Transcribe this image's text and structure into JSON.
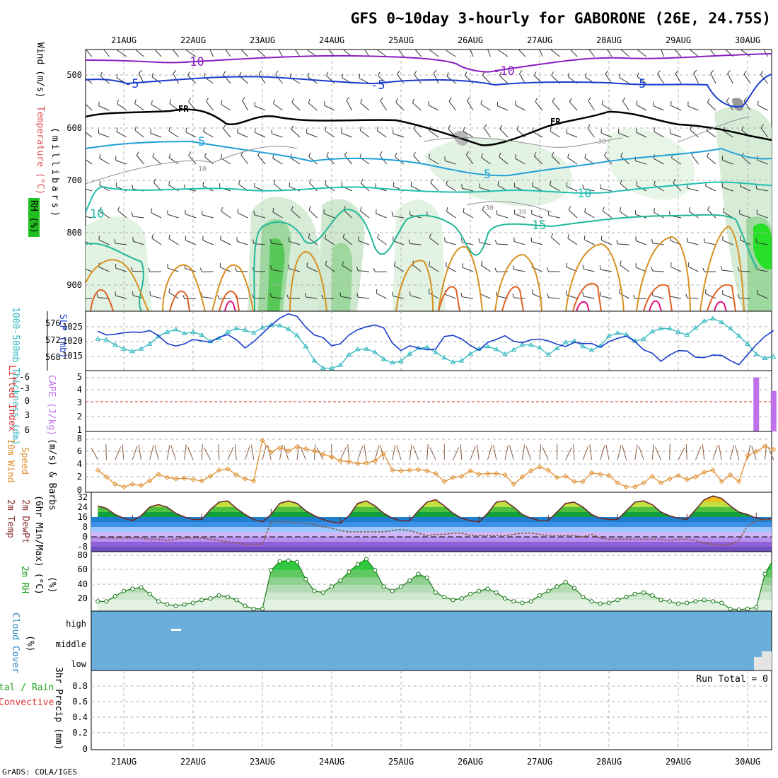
{
  "title": "GFS 0~10day 3-hourly for GABORONE (26E, 24.75S)",
  "credit": "GrADS: COLA/IGES",
  "dates": [
    "21AUG",
    "22AUG",
    "23AUG",
    "24AUG",
    "25AUG",
    "26AUG",
    "27AUG",
    "28AUG",
    "29AUG",
    "30AUG"
  ],
  "colors": {
    "temperature": "#e05050",
    "wind": "#000000",
    "rh": "#20c020",
    "thickness": "#30b8c0",
    "slp": "#1a3ccc",
    "lifted_index": "#e03030",
    "cape": "#c070e8",
    "wind10": "#e09030",
    "barbs": "#8a5a3a",
    "dewpt": "#8a5a3a",
    "rh2m": "#20a020",
    "cloud": "#6aaedc",
    "precip_label": "#20a020"
  },
  "panels": {
    "upper": {
      "ylabel_wind": "Wind (m/s)",
      "ylabel_temp": "Temperature (°C)",
      "ylabel_rh": "RH (%)",
      "ylabel_axis": "(millibars)",
      "yticks": [
        "500",
        "600",
        "700",
        "800",
        "900"
      ],
      "labels": {
        "m10a": "-10",
        "m10b": "-10",
        "m5a": "-5",
        "m5b": "-5",
        "m5c": "-5",
        "fr1": "FR",
        "fr2": "FR",
        "p5a": "5",
        "p5b": "5",
        "p10a": "10",
        "p10b": "10",
        "p15": "15",
        "rh10": "10",
        "rh30a": "30",
        "rh30b": "30",
        "rh30c": "30"
      }
    },
    "thick": {
      "ylabel_left": "1000-500mb Thickness (dm)",
      "ylabel_right": "SLP (mb)",
      "yticks_left": [
        "576",
        "572",
        "568"
      ],
      "yticks_right": [
        "1025",
        "1020",
        "1015"
      ]
    },
    "li": {
      "ylabel_left": "Lifted Index",
      "ylabel_right": "CAPE (J/kg)",
      "yticks_left": [
        "-6",
        "-3",
        "0",
        "3",
        "6"
      ],
      "yticks_right": [
        "5",
        "4",
        "3",
        "2",
        "1"
      ]
    },
    "wind10": {
      "ylabel1": "10m Wind",
      "ylabel2": "Speed",
      "ylabel3": "(m/s) & Barbs",
      "yticks": [
        "8",
        "6",
        "4",
        "2",
        "0"
      ]
    },
    "temp2m": {
      "ylabel1": "2m Temp",
      "ylabel2": "2m DewPt",
      "ylabel3": "(6hr Min/Max) (°C)",
      "yticks": [
        "32",
        "24",
        "16",
        "8",
        "0",
        "-8"
      ]
    },
    "rh2m": {
      "ylabel1": "2m RH",
      "ylabel2": "(%)",
      "yticks": [
        "80",
        "60",
        "40",
        "20"
      ]
    },
    "cloud": {
      "ylabel1": "Cloud Cover",
      "ylabel2": "(%)",
      "levels": [
        "high",
        "middle",
        "low"
      ]
    },
    "precip": {
      "ylabel1": "3hr Precip (mm)",
      "ylabel_total": "tal / Rain",
      "ylabel_conv": "Convective",
      "run_total": "Run Total = 0",
      "yticks": [
        "0.8",
        "0.6",
        "0.4",
        "0.2",
        "0"
      ]
    }
  },
  "chart_data": [
    {
      "type": "line",
      "title": "1000-500mb Thickness (dm) / SLP (mb)",
      "x": [
        0,
        1,
        2,
        3,
        4,
        5,
        6,
        7,
        8,
        9,
        10,
        11,
        12,
        13,
        14,
        15,
        16,
        17,
        18,
        19,
        20,
        21,
        22,
        23,
        24,
        25,
        26,
        27,
        28,
        29,
        30,
        31,
        32,
        33,
        34,
        35,
        36,
        37,
        38,
        39,
        40,
        41,
        42,
        43,
        44,
        45,
        46,
        47,
        48,
        49,
        50,
        51,
        52,
        53,
        54,
        55,
        56,
        57,
        58,
        59,
        60,
        61,
        62,
        63,
        64,
        65,
        66,
        67,
        68,
        69,
        70,
        71,
        72,
        73,
        74,
        75,
        76,
        77,
        78
      ],
      "series": [
        {
          "name": "Thickness (dm)",
          "axis": "left",
          "values": [
            572.4,
            572.2,
            571.2,
            570.4,
            569.9,
            570.4,
            571.4,
            572.9,
            573.8,
            574.3,
            573.5,
            573.8,
            573.2,
            571.9,
            572.5,
            573.8,
            574.5,
            574.2,
            573.6,
            574.7,
            575.2,
            575.1,
            574.4,
            573.1,
            570.9,
            568.0,
            566.5,
            566.5,
            567.1,
            569.2,
            570.3,
            570.4,
            569.7,
            568.3,
            567.6,
            567.9,
            569.4,
            570.5,
            570.7,
            569.7,
            568.6,
            567.7,
            568.0,
            569.4,
            570.4,
            570.9,
            570.3,
            569.3,
            570.2,
            571.2,
            571.2,
            570.6,
            569.2,
            570.5,
            571.7,
            572.0,
            570.9,
            570.1,
            571.0,
            573.0,
            573.6,
            573.3,
            572.0,
            572.4,
            573.9,
            574.5,
            574.5,
            573.8,
            573.2,
            574.6,
            576.0,
            576.5,
            575.8,
            574.5,
            573.0,
            571.4,
            569.3,
            568.5,
            568.8
          ]
        },
        {
          "name": "SLP (mb)",
          "axis": "right",
          "values": [
            1022.6,
            1021.6,
            1021.8,
            1022.2,
            1022.4,
            1022.3,
            1022.8,
            1021.4,
            1019.3,
            1018.6,
            1019.2,
            1020.4,
            1020.0,
            1019.7,
            1021.0,
            1021.7,
            1020.3,
            1018.1,
            1019.8,
            1022.0,
            1024.2,
            1026.1,
            1027.3,
            1026.6,
            1023.7,
            1021.6,
            1020.9,
            1018.7,
            1019.2,
            1021.6,
            1023.0,
            1023.8,
            1024.3,
            1023.5,
            1019.4,
            1017.4,
            1018.7,
            1018.1,
            1017.6,
            1017.8,
            1021.2,
            1021.5,
            1020.5,
            1018.8,
            1017.5,
            1019.6,
            1020.4,
            1021.4,
            1019.9,
            1019.5,
            1020.3,
            1020.5,
            1020.0,
            1019.1,
            1018.5,
            1019.6,
            1019.3,
            1019.3,
            1018.3,
            1019.8,
            1020.7,
            1021.3,
            1019.8,
            1017.6,
            1016.7,
            1014.5,
            1016.2,
            1017.4,
            1017.3,
            1015.6,
            1015.5,
            1016.2,
            1016.1,
            1014.7,
            1013.6,
            1016.3,
            1019.0,
            1021.2,
            1022.8
          ]
        }
      ],
      "xlabel": "",
      "ylabel": "1000-500mb Thickness (dm)",
      "ylim_left": [
        566,
        578
      ],
      "ylim_right": [
        1012,
        1028
      ]
    },
    {
      "type": "bar",
      "title": "Lifted Index / CAPE (J/kg)",
      "x": [
        76,
        78
      ],
      "series": [
        {
          "name": "CAPE (J/kg)",
          "values": [
            5.0,
            4.0
          ]
        }
      ],
      "lifted_index_line": 0,
      "ylim_cape": [
        1,
        5.5
      ],
      "ylim_li": [
        6,
        -6
      ]
    },
    {
      "type": "line",
      "title": "10m Wind Speed (m/s) & Barbs",
      "x": [
        0,
        1,
        2,
        3,
        4,
        5,
        6,
        7,
        8,
        9,
        10,
        11,
        12,
        13,
        14,
        15,
        16,
        17,
        18,
        19,
        20,
        21,
        22,
        23,
        24,
        25,
        26,
        27,
        28,
        29,
        30,
        31,
        32,
        33,
        34,
        35,
        36,
        37,
        38,
        39,
        40,
        41,
        42,
        43,
        44,
        45,
        46,
        47,
        48,
        49,
        50,
        51,
        52,
        53,
        54,
        55,
        56,
        57,
        58,
        59,
        60,
        61,
        62,
        63,
        64,
        65,
        66,
        67,
        68,
        69,
        70,
        71,
        72,
        73,
        74,
        75,
        76,
        77,
        78
      ],
      "series": [
        {
          "name": "10m Wind Speed (m/s)",
          "values": [
            3.1,
            2.1,
            1.0,
            0.6,
            1.0,
            0.8,
            1.5,
            2.5,
            2.0,
            1.8,
            1.9,
            1.7,
            1.5,
            2.2,
            3.1,
            3.3,
            2.4,
            1.8,
            1.5,
            7.6,
            5.8,
            6.5,
            6.0,
            6.6,
            6.3,
            6.0,
            5.5,
            5.1,
            4.5,
            4.4,
            4.1,
            4.2,
            4.5,
            5.6,
            3.1,
            3.0,
            3.1,
            3.2,
            3.0,
            2.6,
            1.4,
            2.0,
            2.2,
            3.0,
            2.5,
            2.6,
            2.6,
            2.4,
            1.0,
            2.1,
            3.0,
            3.6,
            3.1,
            2.0,
            2.2,
            1.4,
            1.4,
            2.7,
            2.5,
            2.3,
            1.2,
            0.6,
            0.6,
            1.2,
            2.2,
            1.2,
            1.8,
            2.3,
            1.7,
            2.1,
            2.8,
            3.1,
            1.4,
            2.4,
            1.4,
            5.3,
            5.9,
            6.7,
            6.2
          ]
        }
      ],
      "ylim": [
        0,
        8.5
      ]
    },
    {
      "type": "line",
      "title": "2m Temp / 2m DewPt (6hr Min/Max) (°C)",
      "x": [
        0,
        1,
        2,
        3,
        4,
        5,
        6,
        7,
        8,
        9,
        10,
        11,
        12,
        13,
        14,
        15,
        16,
        17,
        18,
        19,
        20,
        21,
        22,
        23,
        24,
        25,
        26,
        27,
        28,
        29,
        30,
        31,
        32,
        33,
        34,
        35,
        36,
        37,
        38,
        39,
        40,
        41,
        42,
        43,
        44,
        45,
        46,
        47,
        48,
        49,
        50,
        51,
        52,
        53,
        54,
        55,
        56,
        57,
        58,
        59,
        60,
        61,
        62,
        63,
        64,
        65,
        66,
        67,
        68,
        69,
        70,
        71,
        72,
        73,
        74,
        75,
        76,
        77,
        78
      ],
      "series": [
        {
          "name": "2m Temp",
          "values": [
            25,
            23,
            18,
            15,
            13,
            17,
            24,
            26,
            24,
            19,
            16,
            14,
            14,
            22,
            28,
            29,
            23,
            18,
            14,
            12,
            18,
            27,
            29,
            27,
            21,
            17,
            14,
            12,
            11,
            17,
            27,
            29,
            25,
            19,
            15,
            13,
            13,
            21,
            28,
            30,
            25,
            19,
            15,
            13,
            12,
            19,
            28,
            29,
            24,
            18,
            15,
            13,
            13,
            20,
            27,
            28,
            24,
            18,
            15,
            14,
            14,
            21,
            28,
            29,
            26,
            20,
            17,
            15,
            14,
            22,
            30,
            33,
            31,
            25,
            20,
            18,
            15,
            14,
            15
          ]
        },
        {
          "name": "2m DewPt",
          "values": [
            -1,
            -1,
            -1,
            -1,
            -1,
            -1,
            -2,
            -2,
            -3,
            -2,
            -1,
            -1,
            -1,
            -2,
            -3,
            -4,
            -5,
            -6,
            -6,
            -6,
            12,
            12,
            12,
            11,
            11,
            10,
            8,
            7,
            5,
            4,
            4,
            4,
            4,
            4,
            5,
            6,
            5,
            3,
            1,
            2,
            2,
            3,
            3,
            1,
            1,
            1,
            1,
            1,
            2,
            3,
            3,
            2,
            1,
            1,
            1,
            1,
            0,
            2,
            -1,
            -2,
            -2,
            -2,
            -2,
            -2,
            -2,
            -2,
            -3,
            -2,
            -2,
            -3,
            -5,
            -6,
            -7,
            -6,
            -3,
            9,
            13,
            14,
            14
          ]
        }
      ],
      "ylim": [
        -12,
        36
      ]
    },
    {
      "type": "area",
      "title": "2m RH (%)",
      "x": [
        0,
        1,
        2,
        3,
        4,
        5,
        6,
        7,
        8,
        9,
        10,
        11,
        12,
        13,
        14,
        15,
        16,
        17,
        18,
        19,
        20,
        21,
        22,
        23,
        24,
        25,
        26,
        27,
        28,
        29,
        30,
        31,
        32,
        33,
        34,
        35,
        36,
        37,
        38,
        39,
        40,
        41,
        42,
        43,
        44,
        45,
        46,
        47,
        48,
        49,
        50,
        51,
        52,
        53,
        54,
        55,
        56,
        57,
        58,
        59,
        60,
        61,
        62,
        63,
        64,
        65,
        66,
        67,
        68,
        69,
        70,
        71,
        72,
        73,
        74,
        75,
        76,
        77,
        78
      ],
      "series": [
        {
          "name": "2m RH (%)",
          "values": [
            18,
            18,
            25,
            32,
            35,
            37,
            28,
            18,
            14,
            12,
            14,
            16,
            20,
            22,
            26,
            24,
            20,
            12,
            8,
            8,
            60,
            72,
            73,
            71,
            48,
            32,
            30,
            38,
            46,
            58,
            68,
            75,
            60,
            38,
            32,
            38,
            46,
            55,
            50,
            30,
            24,
            20,
            22,
            28,
            32,
            35,
            30,
            22,
            18,
            16,
            18,
            26,
            32,
            38,
            44,
            36,
            24,
            18,
            15,
            16,
            20,
            24,
            28,
            30,
            26,
            20,
            18,
            15,
            16,
            18,
            20,
            18,
            16,
            8,
            7,
            8,
            10,
            55,
            75
          ]
        }
      ],
      "ylim": [
        5,
        85
      ]
    },
    {
      "type": "heatmap",
      "title": "Cloud Cover (%)",
      "levels": [
        "high",
        "middle",
        "low"
      ],
      "note": "no cloud cover through the period; low cloud at the last steps"
    },
    {
      "type": "bar",
      "title": "3hr Precip (mm)",
      "series": [
        {
          "name": "Total / Rain",
          "values": []
        },
        {
          "name": "Convective",
          "values": []
        }
      ],
      "run_total": 0,
      "ylim": [
        0,
        0.95
      ]
    }
  ]
}
